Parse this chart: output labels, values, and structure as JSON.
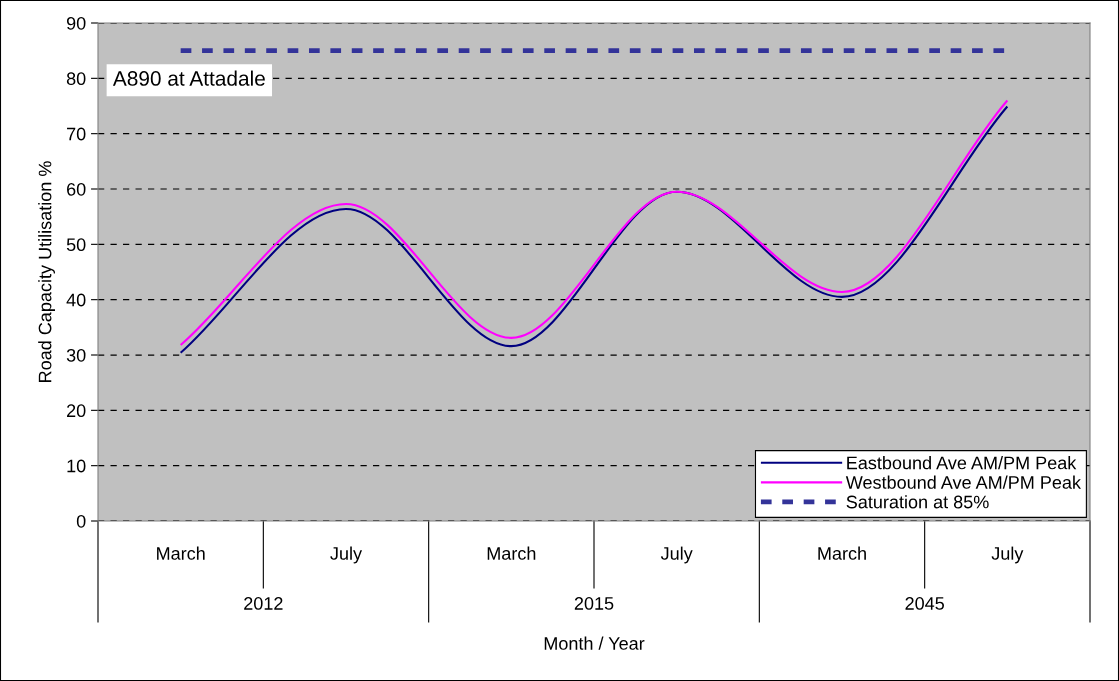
{
  "chart_data": {
    "type": "line",
    "title": "A890 at Attadale",
    "xlabel": "Month / Year",
    "ylabel": "Road Capacity Utilisation %",
    "categories": [
      "March",
      "July",
      "March",
      "July",
      "March",
      "July"
    ],
    "annotations": [
      "2012",
      "2015",
      "2045"
    ],
    "series": [
      {
        "name": "Eastbound Ave AM/PM Peak",
        "color": "#000080",
        "values": [
          30.4,
          56.4,
          31.6,
          59.5,
          40.5,
          74.9
        ]
      },
      {
        "name": "Westbound Ave AM/PM Peak",
        "color": "#ff00ff",
        "values": [
          31.8,
          57.3,
          33.1,
          59.5,
          41.4,
          76.0
        ]
      },
      {
        "name": "Saturation at 85%",
        "color": "#333399",
        "line_style": "dashed",
        "values": [
          85,
          85,
          85,
          85,
          85,
          85
        ]
      }
    ],
    "ylim": [
      0,
      90
    ],
    "yticks": [
      0,
      10,
      20,
      30,
      40,
      50,
      60,
      70,
      80,
      90
    ],
    "grid": "y",
    "legend": "bottom right"
  }
}
